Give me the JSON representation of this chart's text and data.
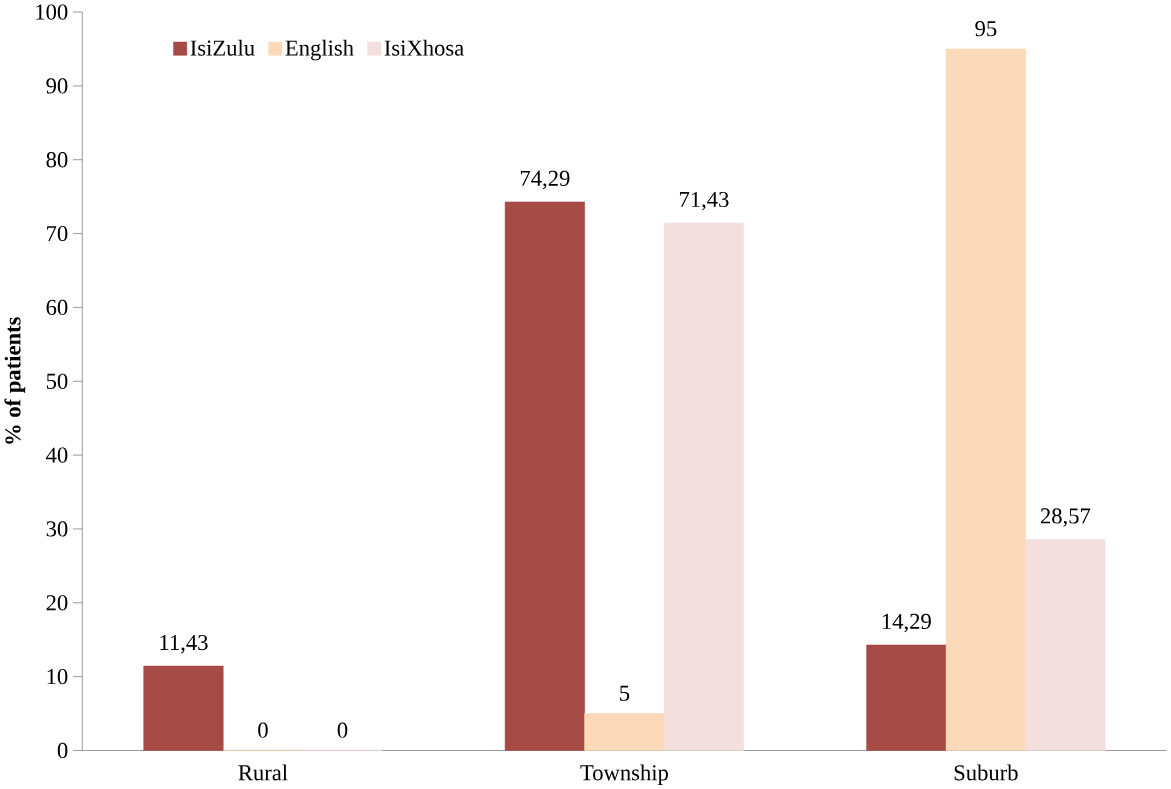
{
  "chart_data": {
    "type": "bar",
    "ylabel": "% of patients",
    "categories": [
      "Rural",
      "Township",
      "Suburb"
    ],
    "series": [
      {
        "name": "IsiZulu",
        "color": "#a54a44",
        "values": [
          11.43,
          74.29,
          14.29
        ],
        "value_labels": [
          "11,43",
          "74,29",
          "14,29"
        ]
      },
      {
        "name": "English",
        "color": "#fcd9b8",
        "values": [
          0,
          5,
          95
        ],
        "value_labels": [
          "0",
          "5",
          "95"
        ]
      },
      {
        "name": "IsiXhosa",
        "color": "#f3e0de",
        "values": [
          0,
          71.43,
          28.57
        ],
        "value_labels": [
          "0",
          "71,43",
          "28,57"
        ]
      }
    ],
    "ylim": [
      0,
      100
    ],
    "yticks": [
      0,
      10,
      20,
      30,
      40,
      50,
      60,
      70,
      80,
      90,
      100
    ],
    "grid": false,
    "legend": "top left"
  }
}
